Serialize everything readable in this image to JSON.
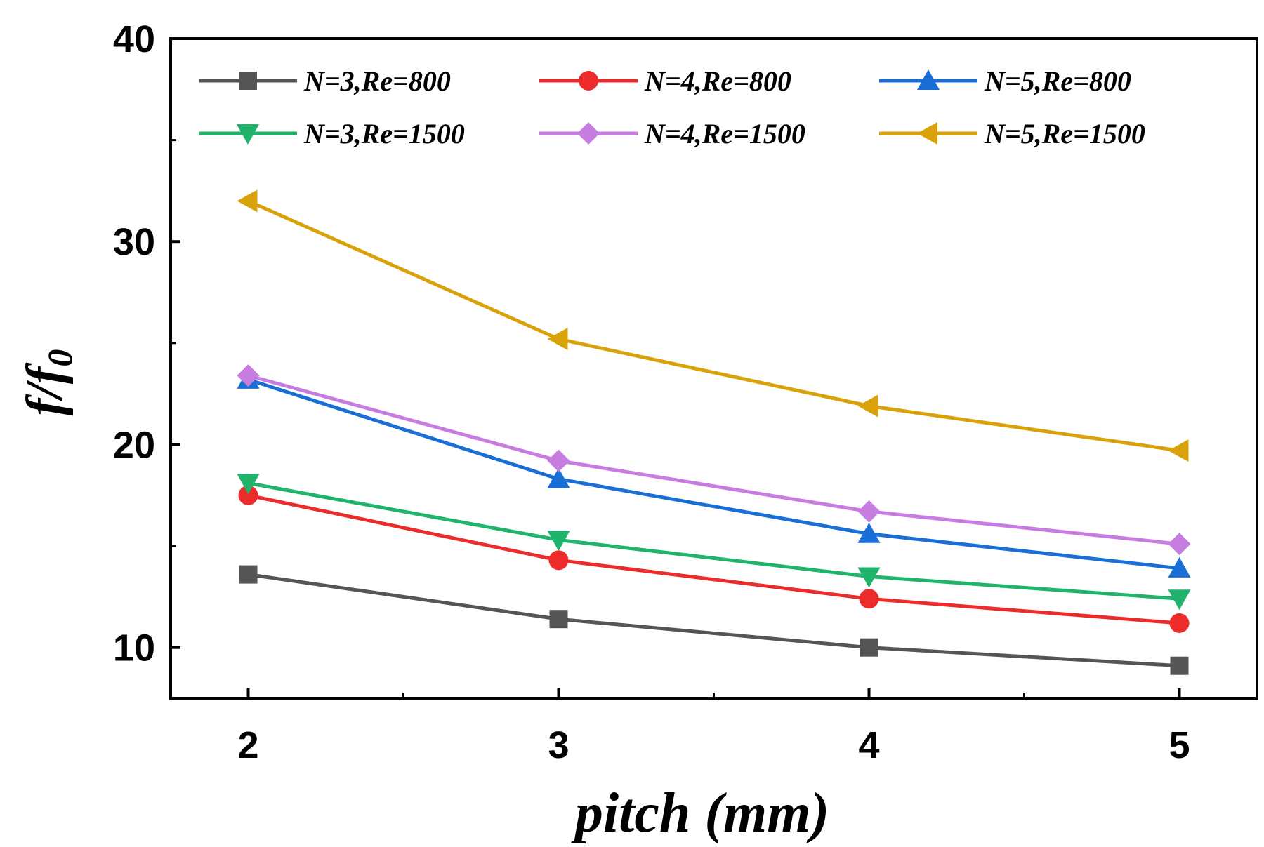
{
  "chart_data": {
    "type": "line",
    "title": "",
    "xlabel": "pitch (mm)",
    "ylabel": "f/f0",
    "ylabel_main": "f/f",
    "ylabel_sub": "0",
    "x": [
      2,
      3,
      4,
      5
    ],
    "x_tick_labels": [
      "2",
      "3",
      "4",
      "5"
    ],
    "y_tick_labels": [
      "10",
      "20",
      "30",
      "40"
    ],
    "y_ticks": [
      10,
      20,
      30,
      40
    ],
    "xlim": [
      1.75,
      5.25
    ],
    "ylim": [
      7.5,
      40
    ],
    "legend_location": "top",
    "grid": false,
    "series": [
      {
        "name": "N=3,Re=800",
        "values": [
          13.6,
          11.4,
          10.0,
          9.1
        ],
        "color": "#555555",
        "marker": "square"
      },
      {
        "name": "N=4,Re=800",
        "values": [
          17.5,
          14.3,
          12.4,
          11.2
        ],
        "color": "#ec2b2b",
        "marker": "circle"
      },
      {
        "name": "N=5,Re=800",
        "values": [
          23.2,
          18.3,
          15.6,
          13.9
        ],
        "color": "#1a6fd6",
        "marker": "triangle-up"
      },
      {
        "name": "N=3,Re=1500",
        "values": [
          18.1,
          15.3,
          13.5,
          12.4
        ],
        "color": "#1fb36b",
        "marker": "triangle-down"
      },
      {
        "name": "N=4,Re=1500",
        "values": [
          23.4,
          19.2,
          16.7,
          15.1
        ],
        "color": "#c77ddf",
        "marker": "diamond"
      },
      {
        "name": "N=5,Re=1500",
        "values": [
          32.0,
          25.2,
          21.9,
          19.7
        ],
        "color": "#d9a10a",
        "marker": "triangle-left"
      }
    ]
  }
}
